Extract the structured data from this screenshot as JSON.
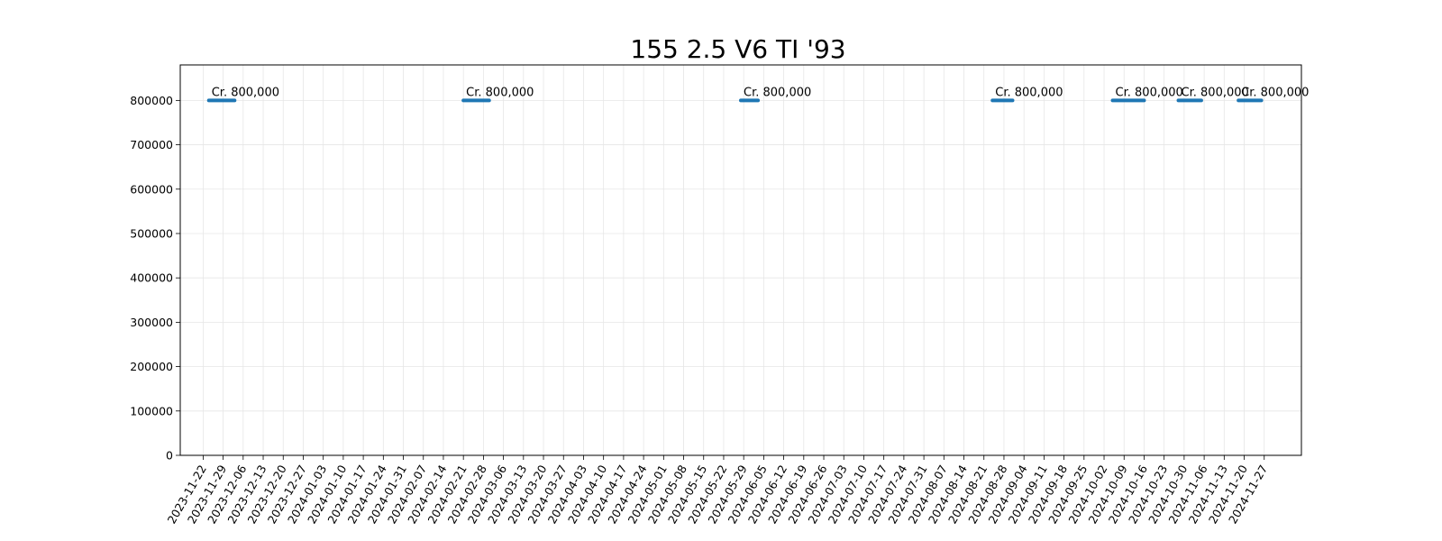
{
  "chart_data": {
    "type": "line",
    "title": "155 2.5 V6 TI '93",
    "xlabel": "",
    "ylabel": "",
    "x_ticks": [
      "2023-11-22",
      "2023-11-29",
      "2023-12-06",
      "2023-12-13",
      "2023-12-20",
      "2023-12-27",
      "2024-01-03",
      "2024-01-10",
      "2024-01-17",
      "2024-01-24",
      "2024-01-31",
      "2024-02-07",
      "2024-02-14",
      "2024-02-21",
      "2024-02-28",
      "2024-03-06",
      "2024-03-13",
      "2024-03-20",
      "2024-03-27",
      "2024-04-03",
      "2024-04-10",
      "2024-04-17",
      "2024-04-24",
      "2024-05-01",
      "2024-05-08",
      "2024-05-15",
      "2024-05-22",
      "2024-05-29",
      "2024-06-05",
      "2024-06-12",
      "2024-06-19",
      "2024-06-26",
      "2024-07-03",
      "2024-07-10",
      "2024-07-17",
      "2024-07-24",
      "2024-07-31",
      "2024-08-07",
      "2024-08-14",
      "2024-08-21",
      "2024-08-28",
      "2024-09-04",
      "2024-09-11",
      "2024-09-18",
      "2024-09-25",
      "2024-10-02",
      "2024-10-09",
      "2024-10-16",
      "2024-10-23",
      "2024-10-30",
      "2024-11-06",
      "2024-11-13",
      "2024-11-20",
      "2024-11-27"
    ],
    "y_ticks": [
      0,
      100000,
      200000,
      300000,
      400000,
      500000,
      600000,
      700000,
      800000
    ],
    "ylim": [
      0,
      880000
    ],
    "xlim": [
      "2023-11-14",
      "2024-12-10"
    ],
    "grid": true,
    "series": [
      {
        "color": "#1f77b4",
        "segments": [
          {
            "x": [
              "2023-11-24",
              "2023-12-03"
            ],
            "y": [
              800000,
              800000
            ]
          },
          {
            "x": [
              "2024-02-21",
              "2024-03-01"
            ],
            "y": [
              800000,
              800000
            ]
          },
          {
            "x": [
              "2024-05-28",
              "2024-06-03"
            ],
            "y": [
              800000,
              800000
            ]
          },
          {
            "x": [
              "2024-08-24",
              "2024-08-31"
            ],
            "y": [
              800000,
              800000
            ]
          },
          {
            "x": [
              "2024-10-05",
              "2024-10-16"
            ],
            "y": [
              800000,
              800000
            ]
          },
          {
            "x": [
              "2024-10-28",
              "2024-11-05"
            ],
            "y": [
              800000,
              800000
            ]
          },
          {
            "x": [
              "2024-11-18",
              "2024-11-26"
            ],
            "y": [
              800000,
              800000
            ]
          }
        ]
      }
    ],
    "annotations": [
      {
        "text": "Cr. 800,000",
        "x": "2023-11-24",
        "y": 800000
      },
      {
        "text": "Cr. 800,000",
        "x": "2024-02-21",
        "y": 800000
      },
      {
        "text": "Cr. 800,000",
        "x": "2024-05-28",
        "y": 800000
      },
      {
        "text": "Cr. 800,000",
        "x": "2024-08-24",
        "y": 800000
      },
      {
        "text": "Cr. 800,000",
        "x": "2024-10-05",
        "y": 800000
      },
      {
        "text": "Cr. 800,000",
        "x": "2024-10-28",
        "y": 800000
      },
      {
        "text": "Cr. 800,000",
        "x": "2024-11-18",
        "y": 800000
      }
    ]
  }
}
